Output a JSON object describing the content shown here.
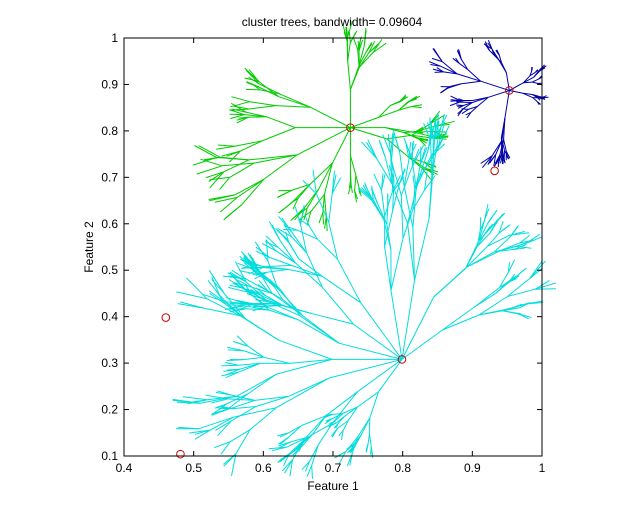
{
  "chart_data": {
    "type": "scatter",
    "title": "cluster trees, bandwidth= 0.09604",
    "xlabel": "Feature 1",
    "ylabel": "Feature 2",
    "xlim": [
      0.4,
      1.0
    ],
    "ylim": [
      0.1,
      1.0
    ],
    "xticks": [
      0.4,
      0.5,
      0.6,
      0.7,
      0.8,
      0.9,
      1.0
    ],
    "xtick_labels": [
      "0.4",
      "0.5",
      "0.6",
      "0.7",
      "0.8",
      "0.9",
      "1"
    ],
    "yticks": [
      0.1,
      0.2,
      0.3,
      0.4,
      0.5,
      0.6,
      0.7,
      0.8,
      0.9,
      1.0
    ],
    "ytick_labels": [
      "0.1",
      "0.2",
      "0.3",
      "0.4",
      "0.5",
      "0.6",
      "0.7",
      "0.8",
      "0.9",
      "1"
    ],
    "grid": false,
    "legend": "none",
    "modes": [
      {
        "x": 0.725,
        "y": 0.807,
        "color": "#cc0000"
      },
      {
        "x": 0.953,
        "y": 0.887,
        "color": "#cc0000"
      },
      {
        "x": 0.799,
        "y": 0.308,
        "color": "#cc0000"
      },
      {
        "x": 0.46,
        "y": 0.398,
        "color": "#cc0000"
      },
      {
        "x": 0.481,
        "y": 0.104,
        "color": "#cc0000"
      },
      {
        "x": 0.932,
        "y": 0.714,
        "color": "#cc0000"
      }
    ],
    "trees": [
      {
        "color": "#00cc00",
        "root": [
          0.725,
          0.807
        ]
      },
      {
        "color": "#0000aa",
        "root": [
          0.953,
          0.887
        ]
      },
      {
        "color": "#00dddd",
        "root": [
          0.799,
          0.308
        ]
      }
    ]
  }
}
